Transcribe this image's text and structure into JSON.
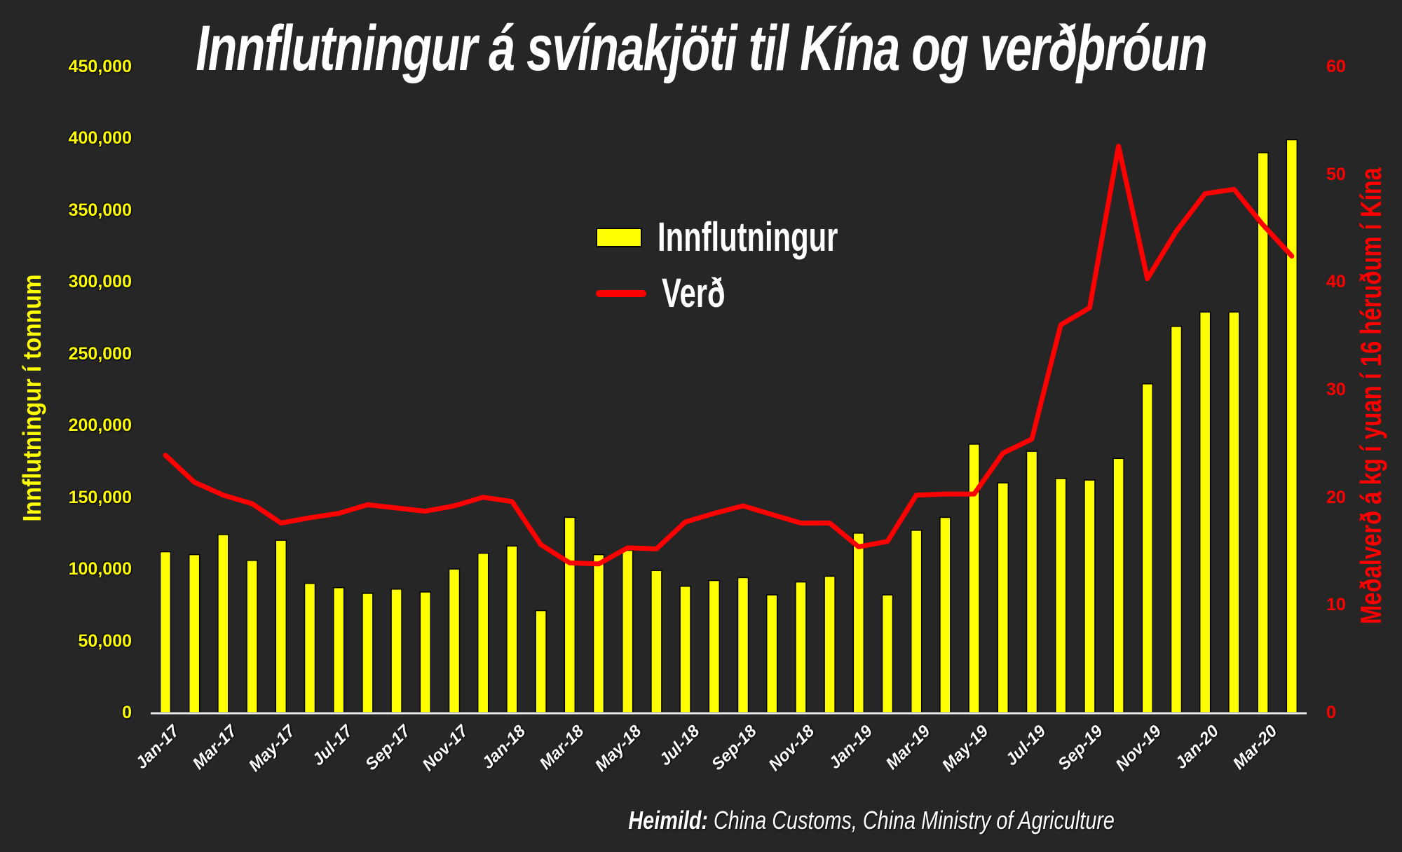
{
  "title": "Innflutningur á svínakjöti til Kína og verðþróun",
  "source": {
    "prefix": "Heimild:",
    "text": " China Customs, China Ministry of Agriculture"
  },
  "colors": {
    "background": "#262626",
    "bars": "#ffff00",
    "line": "#ff0000",
    "text": "#ffffff"
  },
  "chart_data": {
    "type": "bar+line",
    "title": "Innflutningur á svínakjöti til Kína og verðþróun",
    "xlabel": "",
    "ylabel": "Innflutningur í tonnum",
    "ylabel_right": "Meðalverð á kg í yuan í 16 héruðum í Kína",
    "ylim": [
      0,
      450000
    ],
    "ylim_right": [
      0,
      60
    ],
    "yticks": [
      "0",
      "50,000",
      "100,000",
      "150,000",
      "200,000",
      "250,000",
      "300,000",
      "350,000",
      "400,000",
      "450,000"
    ],
    "yticks_right": [
      "0",
      "10",
      "20",
      "30",
      "40",
      "50",
      "60"
    ],
    "xtick_labels": [
      "Jan-17",
      "Mar-17",
      "May-17",
      "Jul-17",
      "Sep-17",
      "Nov-17",
      "Jan-18",
      "Mar-18",
      "May-18",
      "Jul-18",
      "Sep-18",
      "Nov-18",
      "Jan-19",
      "Mar-19",
      "May-19",
      "Jul-19",
      "Sep-19",
      "Nov-19",
      "Jan-20",
      "Mar-20"
    ],
    "grid": false,
    "legend_position": "center-top",
    "categories": [
      "Jan-17",
      "Feb-17",
      "Mar-17",
      "Apr-17",
      "May-17",
      "Jun-17",
      "Jul-17",
      "Aug-17",
      "Sep-17",
      "Oct-17",
      "Nov-17",
      "Dec-17",
      "Jan-18",
      "Feb-18",
      "Mar-18",
      "Apr-18",
      "May-18",
      "Jun-18",
      "Jul-18",
      "Aug-18",
      "Sep-18",
      "Oct-18",
      "Nov-18",
      "Dec-18",
      "Jan-19",
      "Feb-19",
      "Mar-19",
      "Apr-19",
      "May-19",
      "Jun-19",
      "Jul-19",
      "Aug-19",
      "Sep-19",
      "Oct-19",
      "Nov-19",
      "Dec-19",
      "Jan-20",
      "Feb-20",
      "Mar-20",
      "Apr-20"
    ],
    "series": [
      {
        "name": "Innflutningur",
        "type": "bar",
        "axis": "left",
        "values": [
          112000,
          110000,
          124000,
          106000,
          120000,
          90000,
          87000,
          83000,
          86000,
          84000,
          100000,
          111000,
          116000,
          71000,
          136000,
          110000,
          113000,
          99000,
          88000,
          92000,
          94000,
          82000,
          91000,
          95000,
          125000,
          82000,
          127000,
          136000,
          187000,
          160000,
          182000,
          163000,
          162000,
          177000,
          229000,
          269000,
          279000,
          279000,
          390000,
          399000
        ]
      },
      {
        "name": "Verð",
        "type": "line",
        "axis": "right",
        "values": [
          23.9,
          21.4,
          20.2,
          19.4,
          17.6,
          18.1,
          18.5,
          19.3,
          19.0,
          18.7,
          19.2,
          20.0,
          19.6,
          15.6,
          13.9,
          13.8,
          15.3,
          15.2,
          17.7,
          18.5,
          19.2,
          18.4,
          17.6,
          17.6,
          15.4,
          15.9,
          20.2,
          20.3,
          20.3,
          24.1,
          25.4,
          36.0,
          37.6,
          52.6,
          40.3,
          44.7,
          48.2,
          48.6,
          45.3,
          42.4
        ]
      }
    ]
  },
  "legend": {
    "items": [
      {
        "label": "Innflutningur",
        "kind": "bar-swatch"
      },
      {
        "label": "Verð",
        "kind": "line-swatch"
      }
    ]
  }
}
